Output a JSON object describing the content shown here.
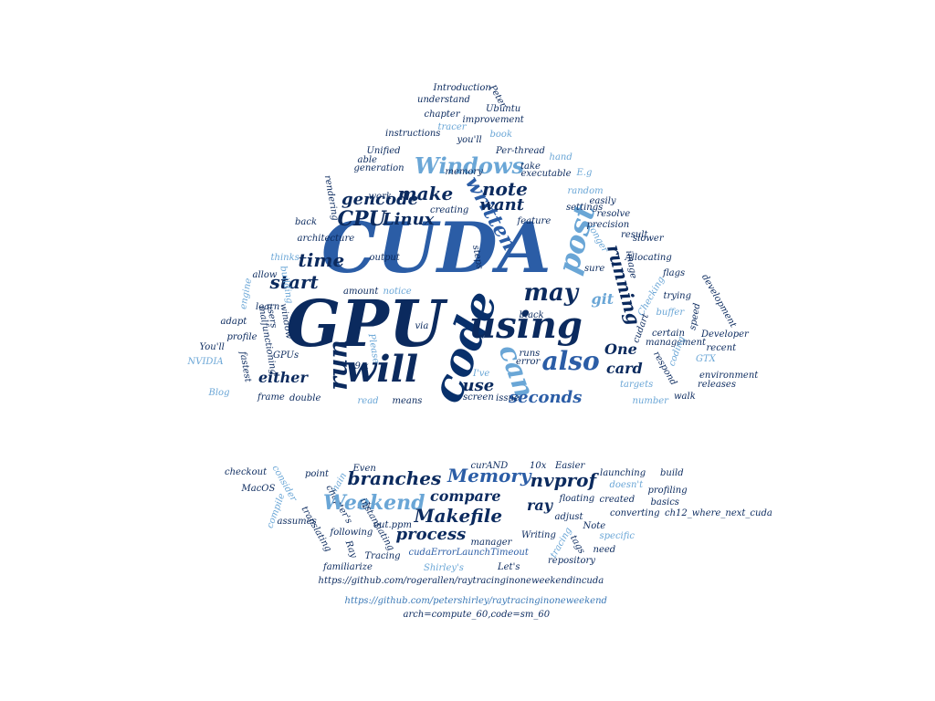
{
  "palette": {
    "navy": "#0b2a5e",
    "dark": "#08306b",
    "blue": "#2b5da6",
    "mid": "#3a78b6",
    "light": "#6aa6d6"
  },
  "words": [
    {
      "t": "CUDA",
      "c": "#2b5da6"
    },
    {
      "t": "GPU",
      "c": "#0b2a5e"
    },
    {
      "t": "code",
      "c": "#08306b"
    },
    {
      "t": "will",
      "c": "#0b2a5e"
    },
    {
      "t": "using",
      "c": "#0b2a5e"
    },
    {
      "t": "can",
      "c": "#6aa6d6"
    },
    {
      "t": "post",
      "c": "#6aa6d6"
    },
    {
      "t": "run",
      "c": "#0b2a5e"
    },
    {
      "t": "may",
      "c": "#0b2a5e"
    },
    {
      "t": "also",
      "c": "#2b5da6"
    },
    {
      "t": "Windows",
      "c": "#6aa6d6"
    },
    {
      "t": "written",
      "c": "#2b5da6"
    },
    {
      "t": "running",
      "c": "#0b2a5e"
    },
    {
      "t": "start",
      "c": "#0b2a5e"
    },
    {
      "t": "time",
      "c": "#0b2a5e"
    },
    {
      "t": "CPU",
      "c": "#0b2a5e"
    },
    {
      "t": "Linux",
      "c": "#0b2a5e"
    },
    {
      "t": "make",
      "c": "#0b2a5e"
    },
    {
      "t": "gencode",
      "c": "#0b2a5e"
    },
    {
      "t": "note",
      "c": "#0b2a5e"
    },
    {
      "t": "want",
      "c": "#0b2a5e"
    },
    {
      "t": "either",
      "c": "#0b2a5e"
    },
    {
      "t": "use",
      "c": "#0b2a5e"
    },
    {
      "t": "seconds",
      "c": "#2b5da6"
    },
    {
      "t": "card",
      "c": "#0b2a5e"
    },
    {
      "t": "One",
      "c": "#0b2a5e"
    },
    {
      "t": "git",
      "c": "#6aa6d6"
    },
    {
      "t": "Introduction",
      "c": "#0b2a5e"
    },
    {
      "t": "understand",
      "c": "#0b2a5e"
    },
    {
      "t": "Peter",
      "c": "#0b2a5e"
    },
    {
      "t": "chapter",
      "c": "#0b2a5e"
    },
    {
      "t": "Ubuntu",
      "c": "#0b2a5e"
    },
    {
      "t": "improvement",
      "c": "#0b2a5e"
    },
    {
      "t": "tracer",
      "c": "#6aa6d6"
    },
    {
      "t": "book",
      "c": "#6aa6d6"
    },
    {
      "t": "instructions",
      "c": "#0b2a5e"
    },
    {
      "t": "you'll",
      "c": "#0b2a5e"
    },
    {
      "t": "Unified",
      "c": "#0b2a5e"
    },
    {
      "t": "Per-thread",
      "c": "#0b2a5e"
    },
    {
      "t": "hand",
      "c": "#6aa6d6"
    },
    {
      "t": "able",
      "c": "#0b2a5e"
    },
    {
      "t": "take",
      "c": "#0b2a5e"
    },
    {
      "t": "generation",
      "c": "#0b2a5e"
    },
    {
      "t": "memory",
      "c": "#0b2a5e"
    },
    {
      "t": "executable",
      "c": "#0b2a5e"
    },
    {
      "t": "E.g",
      "c": "#6aa6d6"
    },
    {
      "t": "random",
      "c": "#6aa6d6"
    },
    {
      "t": "rendering",
      "c": "#0b2a5e"
    },
    {
      "t": "work",
      "c": "#0b2a5e"
    },
    {
      "t": "easily",
      "c": "#0b2a5e"
    },
    {
      "t": "creating",
      "c": "#0b2a5e"
    },
    {
      "t": "settings",
      "c": "#0b2a5e"
    },
    {
      "t": "resolve",
      "c": "#0b2a5e"
    },
    {
      "t": "back",
      "c": "#0b2a5e"
    },
    {
      "t": "feature",
      "c": "#0b2a5e"
    },
    {
      "t": "precision",
      "c": "#0b2a5e"
    },
    {
      "t": "architecture",
      "c": "#0b2a5e"
    },
    {
      "t": "result",
      "c": "#0b2a5e"
    },
    {
      "t": "longer",
      "c": "#6aa6d6"
    },
    {
      "t": "slower",
      "c": "#0b2a5e"
    },
    {
      "t": "thinks",
      "c": "#6aa6d6"
    },
    {
      "t": "output",
      "c": "#0b2a5e"
    },
    {
      "t": "steps",
      "c": "#0b2a5e"
    },
    {
      "t": "image",
      "c": "#0b2a5e"
    },
    {
      "t": "Allocating",
      "c": "#0b2a5e"
    },
    {
      "t": "sure",
      "c": "#0b2a5e"
    },
    {
      "t": "allow",
      "c": "#0b2a5e"
    },
    {
      "t": "building",
      "c": "#6aa6d6"
    },
    {
      "t": "amount",
      "c": "#0b2a5e"
    },
    {
      "t": "notice",
      "c": "#6aa6d6"
    },
    {
      "t": "flags",
      "c": "#0b2a5e"
    },
    {
      "t": "development",
      "c": "#0b2a5e"
    },
    {
      "t": "engine",
      "c": "#6aa6d6"
    },
    {
      "t": "learn",
      "c": "#0b2a5e"
    },
    {
      "t": "Checking",
      "c": "#6aa6d6"
    },
    {
      "t": "trying",
      "c": "#0b2a5e"
    },
    {
      "t": "users",
      "c": "#0b2a5e"
    },
    {
      "t": "window",
      "c": "#0b2a5e"
    },
    {
      "t": "adapt",
      "c": "#0b2a5e"
    },
    {
      "t": "buffer",
      "c": "#6aa6d6"
    },
    {
      "t": "speed",
      "c": "#0b2a5e"
    },
    {
      "t": "malfunctioning",
      "c": "#0b2a5e"
    },
    {
      "t": "black",
      "c": "#0b2a5e"
    },
    {
      "t": "profile",
      "c": "#0b2a5e"
    },
    {
      "t": "cudart",
      "c": "#0b2a5e"
    },
    {
      "t": "certain",
      "c": "#0b2a5e"
    },
    {
      "t": "Developer",
      "c": "#0b2a5e"
    },
    {
      "t": "via",
      "c": "#0b2a5e"
    },
    {
      "t": "management",
      "c": "#0b2a5e"
    },
    {
      "t": "You'll",
      "c": "#0b2a5e"
    },
    {
      "t": "coding",
      "c": "#6aa6d6"
    },
    {
      "t": "recent",
      "c": "#0b2a5e"
    },
    {
      "t": "Please",
      "c": "#6aa6d6"
    },
    {
      "t": "GPUs",
      "c": "#0b2a5e"
    },
    {
      "t": "runs",
      "c": "#0b2a5e"
    },
    {
      "t": "NVIDIA",
      "c": "#6aa6d6"
    },
    {
      "t": "fastest",
      "c": "#0b2a5e"
    },
    {
      "t": "9.x",
      "c": "#0b2a5e"
    },
    {
      "t": "error",
      "c": "#0b2a5e"
    },
    {
      "t": "respond",
      "c": "#0b2a5e"
    },
    {
      "t": "GTX",
      "c": "#6aa6d6"
    },
    {
      "t": "environment",
      "c": "#0b2a5e"
    },
    {
      "t": "I've",
      "c": "#6aa6d6"
    },
    {
      "t": "releases",
      "c": "#0b2a5e"
    },
    {
      "t": "Blog",
      "c": "#6aa6d6"
    },
    {
      "t": "frame",
      "c": "#0b2a5e"
    },
    {
      "t": "targets",
      "c": "#6aa6d6"
    },
    {
      "t": "double",
      "c": "#0b2a5e"
    },
    {
      "t": "screen",
      "c": "#0b2a5e"
    },
    {
      "t": "issue",
      "c": "#0b2a5e"
    },
    {
      "t": "read",
      "c": "#6aa6d6"
    },
    {
      "t": "means",
      "c": "#0b2a5e"
    },
    {
      "t": "number",
      "c": "#6aa6d6"
    },
    {
      "t": "walk",
      "c": "#0b2a5e"
    },
    {
      "t": "checkout",
      "c": "#0b2a5e"
    },
    {
      "t": "consider",
      "c": "#6aa6d6"
    },
    {
      "t": "point",
      "c": "#0b2a5e"
    },
    {
      "t": "main",
      "c": "#6aa6d6"
    },
    {
      "t": "Even",
      "c": "#0b2a5e"
    },
    {
      "t": "curAND",
      "c": "#0b2a5e"
    },
    {
      "t": "10x",
      "c": "#0b2a5e"
    },
    {
      "t": "Easier",
      "c": "#0b2a5e"
    },
    {
      "t": "launching",
      "c": "#0b2a5e"
    },
    {
      "t": "build",
      "c": "#0b2a5e"
    },
    {
      "t": "branches",
      "c": "#0b2a5e"
    },
    {
      "t": "Memory",
      "c": "#2b5da6"
    },
    {
      "t": "nvprof",
      "c": "#0b2a5e"
    },
    {
      "t": "MacOS",
      "c": "#0b2a5e"
    },
    {
      "t": "compare",
      "c": "#0b2a5e"
    },
    {
      "t": "doesn't",
      "c": "#6aa6d6"
    },
    {
      "t": "profiling",
      "c": "#0b2a5e"
    },
    {
      "t": "chapter's",
      "c": "#0b2a5e"
    },
    {
      "t": "set",
      "c": "#0b2a5e"
    },
    {
      "t": "Weekend",
      "c": "#6aa6d6"
    },
    {
      "t": "ray",
      "c": "#0b2a5e"
    },
    {
      "t": "floating",
      "c": "#0b2a5e"
    },
    {
      "t": "created",
      "c": "#0b2a5e"
    },
    {
      "t": "basics",
      "c": "#0b2a5e"
    },
    {
      "t": "compile",
      "c": "#6aa6d6"
    },
    {
      "t": "ch12_where_next_cuda",
      "c": "#0b2a5e"
    },
    {
      "t": "assumes",
      "c": "#0b2a5e"
    },
    {
      "t": "Makefile",
      "c": "#0b2a5e"
    },
    {
      "t": "converting",
      "c": "#0b2a5e"
    },
    {
      "t": "instantiating",
      "c": "#0b2a5e"
    },
    {
      "t": "adjust",
      "c": "#0b2a5e"
    },
    {
      "t": "translating",
      "c": "#0b2a5e"
    },
    {
      "t": "process",
      "c": "#0b2a5e"
    },
    {
      "t": "out.ppm",
      "c": "#0b2a5e"
    },
    {
      "t": "Note",
      "c": "#0b2a5e"
    },
    {
      "t": "following",
      "c": "#0b2a5e"
    },
    {
      "t": "specific",
      "c": "#6aa6d6"
    },
    {
      "t": "Writing",
      "c": "#0b2a5e"
    },
    {
      "t": "tags",
      "c": "#0b2a5e"
    },
    {
      "t": "Ray",
      "c": "#0b2a5e"
    },
    {
      "t": "manager",
      "c": "#0b2a5e"
    },
    {
      "t": "need",
      "c": "#0b2a5e"
    },
    {
      "t": "cudaErrorLaunchTimeout",
      "c": "#2b5da6"
    },
    {
      "t": "tracing",
      "c": "#6aa6d6"
    },
    {
      "t": "Tracing",
      "c": "#0b2a5e"
    },
    {
      "t": "familiarize",
      "c": "#0b2a5e"
    },
    {
      "t": "Shirley's",
      "c": "#6aa6d6"
    },
    {
      "t": "repository",
      "c": "#0b2a5e"
    },
    {
      "t": "Let's",
      "c": "#0b2a5e"
    },
    {
      "t": "https://github.com/rogerallen/raytracinginoneweekendincuda",
      "c": "#0b2a5e"
    },
    {
      "t": "https://github.com/petershirley/raytracinginoneweekend",
      "c": "#3a78b6"
    },
    {
      "t": "arch=compute_60,code=sm_60",
      "c": "#0b2a5e"
    }
  ]
}
